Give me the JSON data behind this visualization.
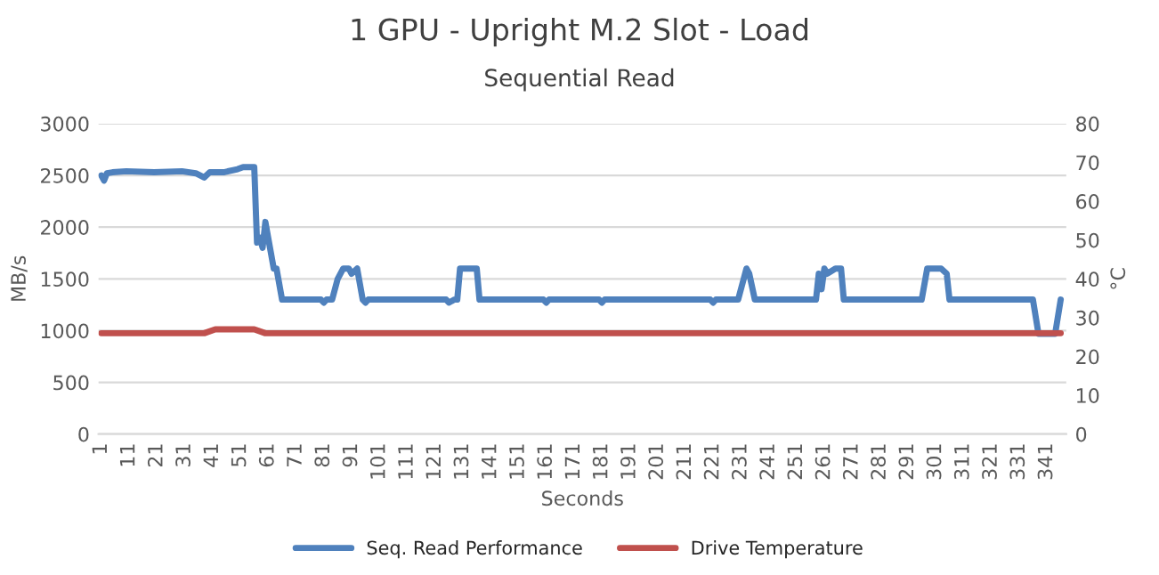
{
  "chart_data": {
    "type": "line",
    "title": "1 GPU - Upright M.2 Slot - Load",
    "subtitle": "Sequential Read",
    "xlabel": "Seconds",
    "ylabel": "MB/s",
    "y2label": "°C",
    "series": [
      {
        "name": "Seq. Read Performance",
        "color": "#4f81bd",
        "x": [
          1,
          2,
          3,
          5,
          10,
          20,
          30,
          35,
          38,
          40,
          45,
          50,
          52,
          55,
          56,
          57,
          58,
          59,
          60,
          61,
          63,
          64,
          66,
          80,
          81,
          82,
          84,
          86,
          88,
          90,
          91,
          93,
          95,
          96,
          97,
          100,
          125,
          126,
          128,
          129,
          130,
          135,
          136,
          137,
          160,
          161,
          162,
          180,
          181,
          182,
          220,
          221,
          222,
          230,
          232,
          233,
          234,
          236,
          250,
          258,
          259,
          260,
          261,
          262,
          265,
          267,
          268,
          270,
          296,
          298,
          303,
          305,
          306,
          310,
          330,
          336,
          338,
          344,
          346
        ],
        "values": [
          2500,
          2450,
          2520,
          2530,
          2540,
          2530,
          2540,
          2520,
          2480,
          2530,
          2530,
          2560,
          2580,
          2580,
          2580,
          1850,
          1900,
          1800,
          2050,
          1900,
          1600,
          1600,
          1300,
          1300,
          1270,
          1300,
          1300,
          1500,
          1600,
          1600,
          1550,
          1600,
          1300,
          1270,
          1300,
          1300,
          1300,
          1270,
          1300,
          1300,
          1600,
          1600,
          1600,
          1300,
          1300,
          1270,
          1300,
          1300,
          1270,
          1300,
          1300,
          1270,
          1300,
          1300,
          1500,
          1600,
          1550,
          1300,
          1300,
          1300,
          1550,
          1400,
          1600,
          1550,
          1600,
          1600,
          1300,
          1300,
          1300,
          1600,
          1600,
          1550,
          1300,
          1300,
          1300,
          1300,
          970,
          970,
          1300
        ]
      },
      {
        "name": "Drive Temperature",
        "color": "#c0504d",
        "axis": "y2",
        "x": [
          1,
          38,
          42,
          56,
          60,
          346
        ],
        "values": [
          26,
          26,
          27,
          27,
          26,
          26
        ]
      }
    ],
    "xlim": [
      0,
      348
    ],
    "xticks": [
      1,
      11,
      21,
      31,
      41,
      51,
      61,
      71,
      81,
      91,
      101,
      111,
      121,
      131,
      141,
      151,
      161,
      171,
      181,
      191,
      201,
      211,
      221,
      231,
      241,
      251,
      261,
      271,
      281,
      291,
      301,
      311,
      321,
      331,
      341
    ],
    "ylim": [
      0,
      3000
    ],
    "yticks": [
      0,
      500,
      1000,
      1500,
      2000,
      2500,
      3000
    ],
    "y2lim": [
      0,
      80
    ],
    "y2ticks": [
      0,
      10,
      20,
      30,
      40,
      50,
      60,
      70,
      80
    ],
    "grid": "y",
    "legend": "bottom",
    "marker": "none",
    "line_style": "solid"
  }
}
